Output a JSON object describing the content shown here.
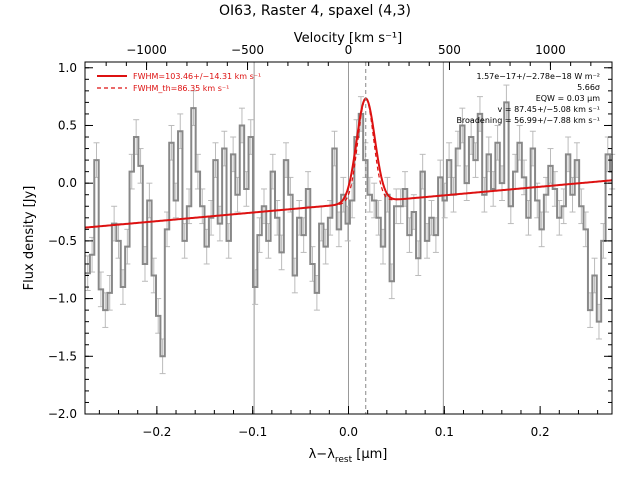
{
  "chart_data": {
    "type": "line",
    "title": "OI63, Raster 4, spaxel (4,3)",
    "xlabel": "λ−λ_rest [μm]",
    "xlabel_main": "λ−λ",
    "xlabel_sub": "rest",
    "xlabel_unit": " [μm]",
    "ylabel": "Flux density [Jy]",
    "top_axis_label": "Velocity [km s⁻¹]",
    "xlim": [
      -0.275,
      0.275
    ],
    "ylim": [
      -2.0,
      1.05
    ],
    "x_ticks": [
      -0.2,
      -0.1,
      0.0,
      0.1,
      0.2
    ],
    "x_tick_labels": [
      "−0.2",
      "−0.1",
      "0.0",
      "0.1",
      "0.2"
    ],
    "y_ticks": [
      1.0,
      0.5,
      0.0,
      -0.5,
      -1.0,
      -1.5,
      -2.0
    ],
    "y_tick_labels": [
      "1.0",
      "0.5",
      "0.0",
      "−0.5",
      "−1.0",
      "−1.5",
      "−2.0"
    ],
    "top_ticks_kms": [
      -1000,
      -500,
      0,
      500,
      1000
    ],
    "top_tick_labels": [
      "−1000",
      "−500",
      "0",
      "500",
      "1000"
    ],
    "vertical_lines_x": [
      -0.0985,
      0.0,
      0.099
    ],
    "line_center_x": 0.018,
    "legend": [
      {
        "label": "FWHM=103.46+/−14.31 km s⁻¹",
        "style": "solid",
        "color": "#dd1111"
      },
      {
        "label": "FWHM_th=86.35 km s⁻¹",
        "style": "dashed",
        "color": "#dd1111"
      }
    ],
    "annotations": [
      "1.57e−17+/−2.78e−18 W m⁻²",
      "5.66σ",
      "EQW = 0.03 μm",
      "v = 87.45+/−5.08 km s⁻¹",
      "Broadening = 56.99+/−7.88 km s⁻¹"
    ],
    "series": [
      {
        "type": "step",
        "color": "#888888",
        "bin_width": 0.0046,
        "x": [
          -0.2722,
          -0.2676,
          -0.263,
          -0.2584,
          -0.2538,
          -0.2492,
          -0.2446,
          -0.24,
          -0.2354,
          -0.2308,
          -0.2262,
          -0.2216,
          -0.217,
          -0.2124,
          -0.2078,
          -0.2032,
          -0.1986,
          -0.194,
          -0.1894,
          -0.1848,
          -0.1802,
          -0.1756,
          -0.171,
          -0.1664,
          -0.1618,
          -0.1572,
          -0.1526,
          -0.148,
          -0.1434,
          -0.1388,
          -0.1342,
          -0.1296,
          -0.125,
          -0.1204,
          -0.1158,
          -0.1112,
          -0.1066,
          -0.102,
          -0.0974,
          -0.0928,
          -0.0882,
          -0.0836,
          -0.079,
          -0.0744,
          -0.0698,
          -0.0652,
          -0.0606,
          -0.056,
          -0.0514,
          -0.0468,
          -0.0422,
          -0.0376,
          -0.033,
          -0.0284,
          -0.0238,
          -0.0192,
          -0.0146,
          -0.01,
          -0.0054,
          -0.0008,
          0.0038,
          0.0084,
          0.013,
          0.0176,
          0.0222,
          0.0268,
          0.0314,
          0.036,
          0.0406,
          0.0452,
          0.0498,
          0.0544,
          0.059,
          0.0636,
          0.0682,
          0.0728,
          0.0774,
          0.082,
          0.0866,
          0.0912,
          0.0958,
          0.1004,
          0.105,
          0.1096,
          0.1142,
          0.1188,
          0.1234,
          0.128,
          0.1326,
          0.1372,
          0.1418,
          0.1464,
          0.151,
          0.1556,
          0.1602,
          0.1648,
          0.1694,
          0.174,
          0.1786,
          0.1832,
          0.1878,
          0.1924,
          0.197,
          0.2016,
          0.2062,
          0.2108,
          0.2154,
          0.22,
          0.2246,
          0.2292,
          0.2338,
          0.2384,
          0.243,
          0.2476,
          0.2522,
          0.2568,
          0.2614,
          0.266,
          0.2706,
          0.2752
        ],
        "y": [
          -0.78,
          -0.62,
          0.2,
          -0.92,
          -1.1,
          -0.95,
          -0.35,
          -0.5,
          -0.9,
          -0.55,
          0.1,
          0.4,
          0.15,
          -0.7,
          -0.15,
          -0.8,
          -1.15,
          -1.5,
          -0.4,
          0.35,
          -0.15,
          0.45,
          -0.5,
          -0.2,
          0.65,
          0.1,
          -0.2,
          -0.55,
          -0.3,
          0.2,
          -0.35,
          0.3,
          -0.5,
          0.25,
          -0.1,
          0.5,
          -0.05,
          0.4,
          -0.9,
          -0.45,
          -0.2,
          -0.5,
          0.1,
          -0.3,
          -0.6,
          0.2,
          -0.1,
          -0.8,
          -0.3,
          -0.45,
          -0.05,
          -0.7,
          -0.95,
          -0.35,
          -0.55,
          -0.3,
          0.3,
          -0.4,
          -0.1,
          -0.35,
          -0.15,
          0.4,
          0.6,
          0.2,
          -0.1,
          -0.15,
          -0.3,
          -0.55,
          -0.1,
          -0.85,
          -0.2,
          -0.2,
          -0.05,
          -0.45,
          -0.25,
          -0.65,
          0.1,
          -0.5,
          -0.3,
          -0.45,
          0.05,
          -0.15,
          0.2,
          -0.1,
          0.3,
          0.5,
          0.0,
          0.4,
          0.2,
          0.6,
          -0.1,
          0.25,
          -0.05,
          0.35,
          0.0,
          0.7,
          -0.2,
          0.1,
          0.35,
          0.05,
          -0.3,
          0.3,
          -0.15,
          -0.4,
          -0.1,
          0.15,
          -0.05,
          -0.3,
          -0.2,
          0.25,
          -0.1,
          0.2,
          -0.2,
          -0.4,
          -1.1,
          -0.8,
          -1.2,
          -0.5,
          0.25,
          0.1
        ],
        "err": 0.15
      },
      {
        "type": "line",
        "name": "FWHM=103.46+/−14.31 km s⁻¹",
        "color": "#dd1111",
        "style": "solid",
        "continuum": [
          [
            -0.275,
            -0.385
          ],
          [
            0.275,
            0.025
          ]
        ],
        "gauss_amplitude": 0.9,
        "gauss_center": 0.018,
        "gauss_sigma": 0.0095
      },
      {
        "type": "line",
        "name": "FWHM_th=86.35 km s⁻¹",
        "color": "#dd1111",
        "style": "dashed",
        "gauss_amplitude": 0.9,
        "gauss_center": 0.018,
        "gauss_sigma": 0.0082
      }
    ]
  }
}
